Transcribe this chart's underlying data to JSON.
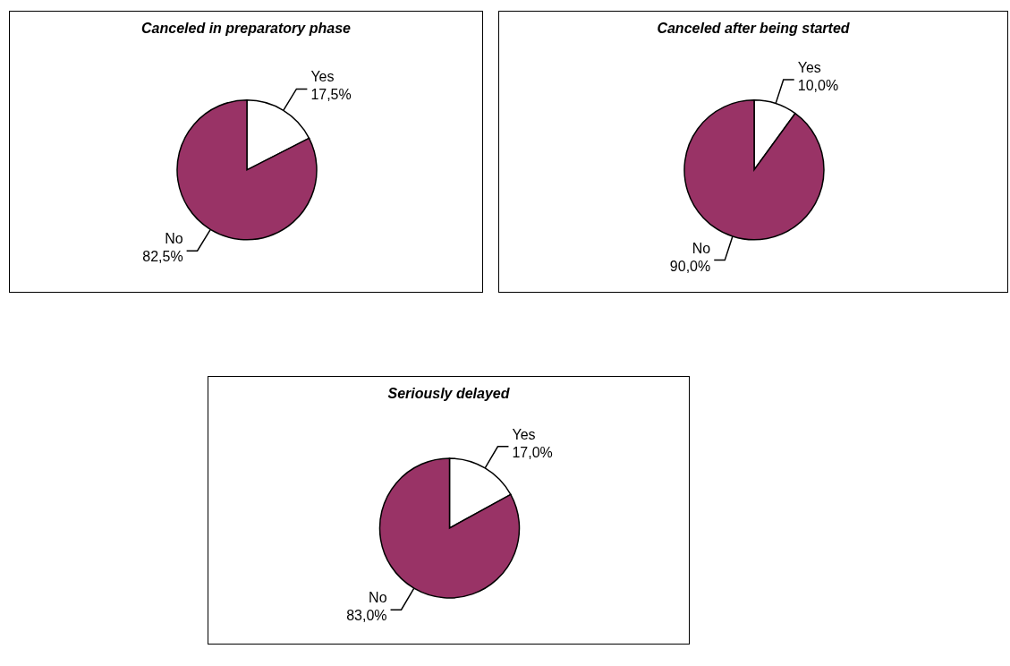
{
  "chart_data": [
    {
      "type": "pie",
      "title": "Canceled in preparatory phase",
      "categories": [
        "Yes",
        "No"
      ],
      "values": [
        17.5,
        82.5
      ],
      "colors": [
        "#ffffff",
        "#993366"
      ],
      "value_labels": [
        "17,5%",
        "82,5%"
      ]
    },
    {
      "type": "pie",
      "title": "Canceled after being started",
      "categories": [
        "Yes",
        "No"
      ],
      "values": [
        10.0,
        90.0
      ],
      "colors": [
        "#ffffff",
        "#993366"
      ],
      "value_labels": [
        "10,0%",
        "90,0%"
      ]
    },
    {
      "type": "pie",
      "title": "Seriously delayed",
      "categories": [
        "Yes",
        "No"
      ],
      "values": [
        17.0,
        83.0
      ],
      "colors": [
        "#ffffff",
        "#993366"
      ],
      "value_labels": [
        "17,0%",
        "83,0%"
      ]
    }
  ]
}
